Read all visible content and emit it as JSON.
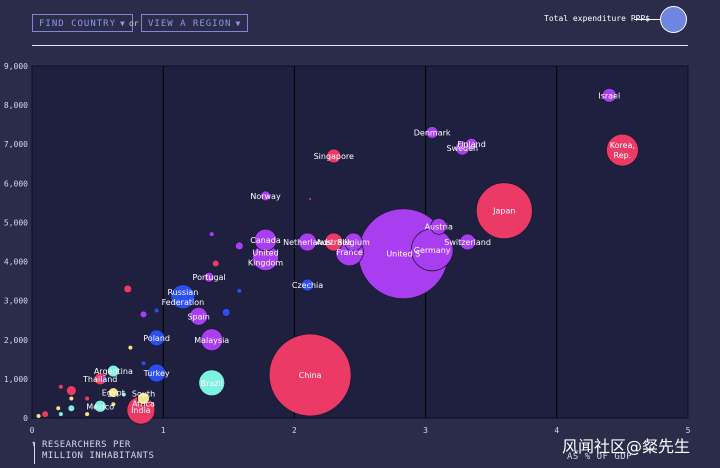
{
  "controls": {
    "find_country": "FIND COUNTRY",
    "or": "or",
    "view_region": "VIEW A REGION",
    "caret": "▼"
  },
  "legend": {
    "label": "Total expenditure PPP$"
  },
  "axes": {
    "x_label_line1": "RESEARCHERS PER",
    "x_label_line2": "MILLION INHABITANTS",
    "y_label": "AS % OF GDP",
    "arrow": "↑"
  },
  "watermark": "风闻社区@粲先生",
  "colors": {
    "purple": "#a83ef0",
    "pink": "#ec3a66",
    "blue": "#2b4ef0",
    "teal": "#7df0e0",
    "yellow": "#f2e28a",
    "background": "#2b2c49",
    "plot": "#1f1f3f"
  },
  "chart_data": {
    "type": "scatter",
    "xlim": [
      0,
      5
    ],
    "ylim": [
      0,
      9000
    ],
    "x_ticks": [
      "0",
      "1",
      "2",
      "3",
      "4",
      "5"
    ],
    "y_ticks": [
      "0",
      "1,000",
      "2,000",
      "3,000",
      "4,000",
      "5,000",
      "6,000",
      "7,000",
      "8,000",
      "9,000"
    ],
    "grid": "vertical",
    "points": [
      {
        "name": "Israel",
        "x": 4.4,
        "y": 8250,
        "r": 7,
        "color": "purple"
      },
      {
        "name": "Korea, Rep.",
        "x": 4.5,
        "y": 6850,
        "r": 16,
        "color": "pink",
        "label_lines": [
          "Korea,",
          "Rep."
        ]
      },
      {
        "name": "Japan",
        "x": 3.6,
        "y": 5300,
        "r": 28,
        "color": "pink"
      },
      {
        "name": "Denmark",
        "x": 3.05,
        "y": 7300,
        "r": 6,
        "color": "purple"
      },
      {
        "name": "Finland",
        "x": 3.35,
        "y": 7000,
        "r": 6,
        "color": "purple"
      },
      {
        "name": "Sweden",
        "x": 3.28,
        "y": 6900,
        "r": 7,
        "color": "purple"
      },
      {
        "name": "Singapore",
        "x": 2.3,
        "y": 6700,
        "r": 7,
        "color": "pink"
      },
      {
        "name": "Norway",
        "x": 1.78,
        "y": 5680,
        "r": 5,
        "color": "purple"
      },
      {
        "name": "Austria",
        "x": 3.1,
        "y": 4900,
        "r": 8,
        "color": "purple"
      },
      {
        "name": "Switzerland",
        "x": 3.32,
        "y": 4500,
        "r": 8,
        "color": "purple"
      },
      {
        "name": "United States",
        "x": 2.83,
        "y": 4200,
        "r": 45,
        "color": "purple",
        "label": "United S"
      },
      {
        "name": "Germany",
        "x": 3.05,
        "y": 4300,
        "r": 21,
        "color": "purple"
      },
      {
        "name": "Belgium",
        "x": 2.45,
        "y": 4500,
        "r": 9,
        "color": "purple"
      },
      {
        "name": "Australia",
        "x": 2.3,
        "y": 4500,
        "r": 9,
        "color": "pink"
      },
      {
        "name": "Netherlands",
        "x": 2.1,
        "y": 4500,
        "r": 9,
        "color": "purple"
      },
      {
        "name": "France",
        "x": 2.42,
        "y": 4250,
        "r": 14,
        "color": "purple"
      },
      {
        "name": "Canada",
        "x": 1.78,
        "y": 4550,
        "r": 11,
        "color": "purple"
      },
      {
        "name": "United Kingdom",
        "x": 1.78,
        "y": 4100,
        "r": 13,
        "color": "purple",
        "label_lines": [
          "United",
          "Kingdom"
        ]
      },
      {
        "name": "Portugal",
        "x": 1.35,
        "y": 3600,
        "r": 5,
        "color": "purple"
      },
      {
        "name": "Czechia",
        "x": 2.1,
        "y": 3400,
        "r": 6,
        "color": "blue"
      },
      {
        "name": "Russian Federation",
        "x": 1.15,
        "y": 3100,
        "r": 12,
        "color": "blue",
        "label_lines": [
          "Russian",
          "Federation"
        ]
      },
      {
        "name": "Spain",
        "x": 1.27,
        "y": 2600,
        "r": 9,
        "color": "purple"
      },
      {
        "name": "Malaysia",
        "x": 1.37,
        "y": 2000,
        "r": 11,
        "color": "purple"
      },
      {
        "name": "Poland",
        "x": 0.95,
        "y": 2050,
        "r": 8,
        "color": "blue"
      },
      {
        "name": "Turkey",
        "x": 0.95,
        "y": 1150,
        "r": 9,
        "color": "blue"
      },
      {
        "name": "China",
        "x": 2.12,
        "y": 1100,
        "r": 41,
        "color": "pink"
      },
      {
        "name": "Brazil",
        "x": 1.37,
        "y": 900,
        "r": 13,
        "color": "teal"
      },
      {
        "name": "Argentina",
        "x": 0.62,
        "y": 1200,
        "r": 6,
        "color": "teal"
      },
      {
        "name": "Thailand",
        "x": 0.52,
        "y": 1000,
        "r": 6,
        "color": "pink"
      },
      {
        "name": "Egypt",
        "x": 0.62,
        "y": 650,
        "r": 5,
        "color": "yellow"
      },
      {
        "name": "South Africa",
        "x": 0.85,
        "y": 500,
        "r": 6,
        "color": "yellow",
        "label_lines": [
          "South",
          "Africa"
        ]
      },
      {
        "name": "Mexico",
        "x": 0.52,
        "y": 300,
        "r": 6,
        "color": "teal"
      },
      {
        "name": "India",
        "x": 0.83,
        "y": 200,
        "r": 14,
        "color": "pink"
      },
      {
        "x": 1.4,
        "y": 3950,
        "r": 3,
        "color": "pink"
      },
      {
        "x": 1.58,
        "y": 4400,
        "r": 4,
        "color": "purple"
      },
      {
        "x": 1.37,
        "y": 4700,
        "r": 2,
        "color": "purple"
      },
      {
        "x": 2.12,
        "y": 5600,
        "r": 1,
        "color": "pink"
      },
      {
        "x": 0.73,
        "y": 3300,
        "r": 4,
        "color": "pink"
      },
      {
        "x": 1.58,
        "y": 3250,
        "r": 2,
        "color": "blue"
      },
      {
        "x": 1.48,
        "y": 2700,
        "r": 4,
        "color": "blue"
      },
      {
        "x": 0.85,
        "y": 2650,
        "r": 3,
        "color": "purple"
      },
      {
        "x": 0.95,
        "y": 2750,
        "r": 2,
        "color": "blue"
      },
      {
        "x": 0.75,
        "y": 1800,
        "r": 2,
        "color": "yellow"
      },
      {
        "x": 0.85,
        "y": 1400,
        "r": 2,
        "color": "blue"
      },
      {
        "x": 0.55,
        "y": 1000,
        "r": 2,
        "color": "blue"
      },
      {
        "x": 0.3,
        "y": 700,
        "r": 5,
        "color": "pink"
      },
      {
        "x": 0.22,
        "y": 800,
        "r": 2,
        "color": "pink"
      },
      {
        "x": 0.1,
        "y": 100,
        "r": 3,
        "color": "pink"
      },
      {
        "x": 0.2,
        "y": 250,
        "r": 2,
        "color": "yellow"
      },
      {
        "x": 0.3,
        "y": 250,
        "r": 3,
        "color": "teal"
      },
      {
        "x": 0.22,
        "y": 100,
        "r": 2,
        "color": "teal"
      },
      {
        "x": 0.3,
        "y": 500,
        "r": 2,
        "color": "yellow"
      },
      {
        "x": 0.42,
        "y": 500,
        "r": 2,
        "color": "pink"
      },
      {
        "x": 0.42,
        "y": 100,
        "r": 2,
        "color": "yellow"
      },
      {
        "x": 0.05,
        "y": 50,
        "r": 2,
        "color": "yellow"
      },
      {
        "x": 0.62,
        "y": 350,
        "r": 2,
        "color": "yellow"
      },
      {
        "x": 0.7,
        "y": 600,
        "r": 2,
        "color": "teal"
      }
    ]
  }
}
